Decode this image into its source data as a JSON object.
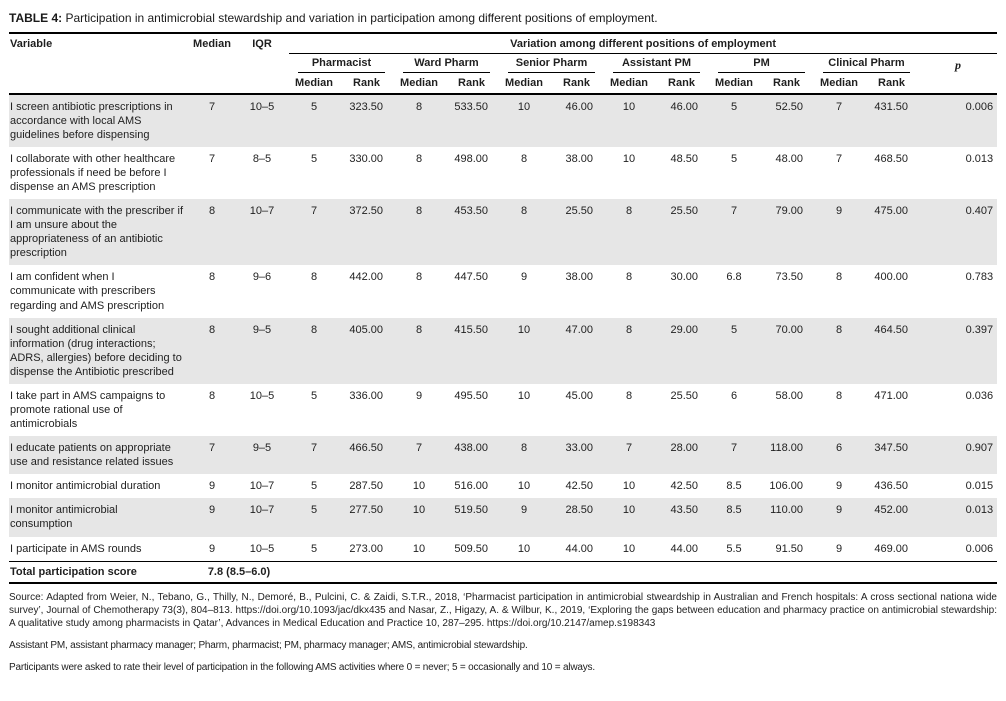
{
  "title": {
    "tag": "TABLE 4:",
    "text": "Participation in antimicrobial stewardship and variation in participation among different positions of employment."
  },
  "table": {
    "col_variable": "Variable",
    "col_median": "Median",
    "col_iqr": "IQR",
    "span_header": "Variation among different positions of employment",
    "col_p": "p",
    "sub_median": "Median",
    "sub_rank": "Rank",
    "groups": [
      {
        "label": "Pharmacist"
      },
      {
        "label": "Ward Pharm"
      },
      {
        "label": "Senior Pharm"
      },
      {
        "label": "Assistant PM"
      },
      {
        "label": "PM"
      },
      {
        "label": "Clinical Pharm"
      }
    ],
    "rows": [
      {
        "variable": "I screen antibiotic prescriptions in accordance with local AMS guidelines before dispensing",
        "median": "7",
        "iqr": "10–5",
        "cells": [
          "5",
          "323.50",
          "8",
          "533.50",
          "10",
          "46.00",
          "10",
          "46.00",
          "5",
          "52.50",
          "7",
          "431.50"
        ],
        "p": "0.006"
      },
      {
        "variable": "I collaborate with other healthcare professionals if need be before I dispense an AMS prescription",
        "median": "7",
        "iqr": "8–5",
        "cells": [
          "5",
          "330.00",
          "8",
          "498.00",
          "8",
          "38.00",
          "10",
          "48.50",
          "5",
          "48.00",
          "7",
          "468.50"
        ],
        "p": "0.013"
      },
      {
        "variable": "I communicate with the prescriber if I am unsure about the appropriateness of an antibiotic prescription",
        "median": "8",
        "iqr": "10–7",
        "cells": [
          "7",
          "372.50",
          "8",
          "453.50",
          "8",
          "25.50",
          "8",
          "25.50",
          "7",
          "79.00",
          "9",
          "475.00"
        ],
        "p": "0.407"
      },
      {
        "variable": "I am confident when I communicate with prescribers regarding and AMS prescription",
        "median": "8",
        "iqr": "9–6",
        "cells": [
          "8",
          "442.00",
          "8",
          "447.50",
          "9",
          "38.00",
          "8",
          "30.00",
          "6.8",
          "73.50",
          "8",
          "400.00"
        ],
        "p": "0.783"
      },
      {
        "variable": "I sought additional clinical information (drug interactions; ADRS, allergies) before deciding to dispense the Antibiotic prescribed",
        "median": "8",
        "iqr": "9–5",
        "cells": [
          "8",
          "405.00",
          "8",
          "415.50",
          "10",
          "47.00",
          "8",
          "29.00",
          "5",
          "70.00",
          "8",
          "464.50"
        ],
        "p": "0.397"
      },
      {
        "variable": "I take part in AMS campaigns to promote rational use of antimicrobials",
        "median": "8",
        "iqr": "10–5",
        "cells": [
          "5",
          "336.00",
          "9",
          "495.50",
          "10",
          "45.00",
          "8",
          "25.50",
          "6",
          "58.00",
          "8",
          "471.00"
        ],
        "p": "0.036"
      },
      {
        "variable": "I educate patients on appropriate use and resistance related issues",
        "median": "7",
        "iqr": "9–5",
        "cells": [
          "7",
          "466.50",
          "7",
          "438.00",
          "8",
          "33.00",
          "7",
          "28.00",
          "7",
          "118.00",
          "6",
          "347.50"
        ],
        "p": "0.907"
      },
      {
        "variable": "I monitor antimicrobial duration",
        "median": "9",
        "iqr": "10–7",
        "cells": [
          "5",
          "287.50",
          "10",
          "516.00",
          "10",
          "42.50",
          "10",
          "42.50",
          "8.5",
          "106.00",
          "9",
          "436.50"
        ],
        "p": "0.015"
      },
      {
        "variable": "I monitor antimicrobial consumption",
        "median": "9",
        "iqr": "10–7",
        "cells": [
          "5",
          "277.50",
          "10",
          "519.50",
          "9",
          "28.50",
          "10",
          "43.50",
          "8.5",
          "110.00",
          "9",
          "452.00"
        ],
        "p": "0.013"
      },
      {
        "variable": "I participate in AMS rounds",
        "median": "9",
        "iqr": "10–5",
        "cells": [
          "5",
          "273.00",
          "10",
          "509.50",
          "10",
          "44.00",
          "10",
          "44.00",
          "5.5",
          "91.50",
          "9",
          "469.00"
        ],
        "p": "0.006"
      }
    ],
    "total": {
      "label": "Total participation score",
      "value": "7.8 (8.5–6.0)"
    }
  },
  "footnotes": {
    "source": "Source: Adapted from Weier, N., Tebano, G., Thilly, N., Demoré, B., Pulcini, C. & Zaidi, S.T.R., 2018, ‘Pharmacist participation in antimicrobial stweardship in Australian and French hospitals: A cross sectional nationa wide survey’, Journal of Chemotherapy 73(3), 804–813. https://doi.org/10.1093/jac/dkx435 and Nasar, Z., Higazy, A. & Wilbur, K., 2019, ‘Exploring the gaps between education and pharmacy practice on antimicrobial stewardship: A qualitative study among pharmacists in Qatar’, Advances in Medical Education and Practice 10, 287–295. https://doi.org/10.2147/amep.s198343",
    "abbreviations": "Assistant PM, assistant pharmacy manager; Pharm, pharmacist; PM, pharmacy manager; AMS, antimicrobial stewardship.",
    "note": "Participants were asked to rate their level of participation in the following AMS activities where 0 = never; 5 = occasionally and 10 = always."
  }
}
